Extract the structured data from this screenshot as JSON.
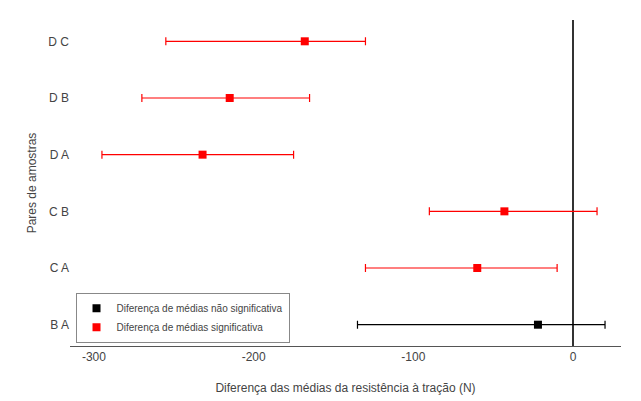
{
  "chart_data": {
    "type": "errorbar",
    "orientation": "horizontal",
    "xlabel": "Diferença das médias da resistência à tração (N)",
    "ylabel": "Pares de amostras",
    "categories": [
      "D C",
      "D B",
      "D A",
      "C B",
      "C A",
      "B A"
    ],
    "series": [
      {
        "name": "Diferença de médias não significativa",
        "color": "black",
        "marker": "square",
        "values": [
          null,
          null,
          null,
          null,
          null,
          -22
        ],
        "lower_err": [
          null,
          null,
          null,
          null,
          null,
          113
        ],
        "upper_err": [
          null,
          null,
          null,
          null,
          null,
          42
        ]
      },
      {
        "name": "Diferença de médias significativa",
        "color": "red",
        "marker": "square",
        "values": [
          -168,
          -215,
          -232,
          -43,
          -60,
          null
        ],
        "lower_err": [
          87,
          55,
          63,
          47,
          70,
          null
        ],
        "upper_err": [
          38,
          50,
          57,
          58,
          50,
          null
        ]
      }
    ],
    "xlim": [
      -315,
      30
    ],
    "xticks": [
      -300,
      -200,
      -100,
      0
    ],
    "grid": false,
    "legend": "lower left"
  }
}
